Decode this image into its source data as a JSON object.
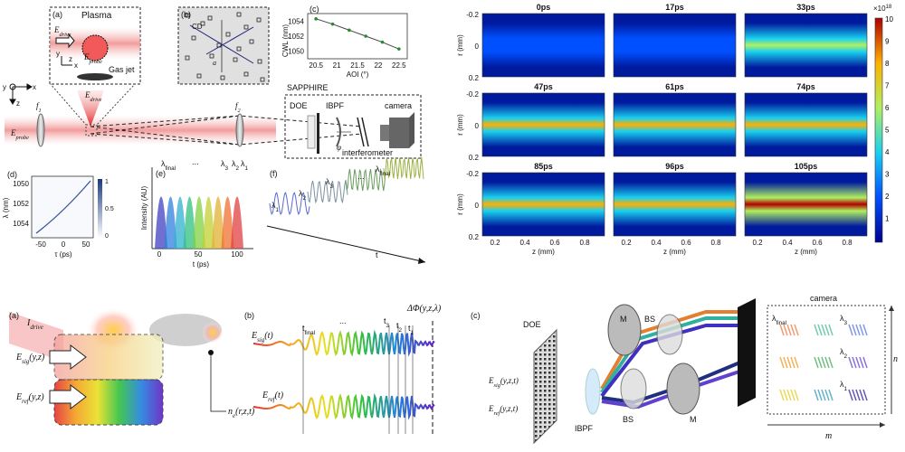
{
  "top_left": {
    "panel_a": {
      "label": "(a)",
      "plasma": "Plasma",
      "e_drive": "E",
      "e_drive_sub": "drive",
      "e_probe": "E",
      "e_probe_sub": "probe",
      "gas_jet": "Gas jet",
      "axis_y": "y",
      "axis_x": "x",
      "axis_z": "z"
    },
    "panel_b": {
      "label": "(b)",
      "cd": "CD",
      "a": "a"
    },
    "panel_c": {
      "label": "(c)",
      "xlabel": "AOI (°)",
      "ylabel": "CWL (nm)",
      "xticks": [
        "20.5",
        "21",
        "21.5",
        "22",
        "22.5"
      ],
      "yticks": [
        "1054",
        "1052",
        "1050"
      ],
      "points": [
        [
          20.5,
          1054.3
        ],
        [
          20.9,
          1053.6
        ],
        [
          21.3,
          1052.8
        ],
        [
          21.7,
          1052.0
        ],
        [
          22.1,
          1051.2
        ],
        [
          22.5,
          1050.3
        ]
      ]
    },
    "setup": {
      "e_probe": "E",
      "e_probe_sub": "probe",
      "e_drive": "E",
      "e_drive_sub": "drive",
      "f1": "f",
      "f1_sub": "1",
      "f2": "f",
      "f2_sub": "2",
      "sapphire": "SAPPHIRE",
      "doe": "DOE",
      "ibpf": "IBPF",
      "camera": "camera",
      "phi": "φ",
      "interferometer": "interferometer",
      "axis_y": "y",
      "axis_x": "x",
      "axis_z": "z"
    },
    "panel_d": {
      "label": "(d)",
      "ylabel": "λ (nm)",
      "xlabel": "τ (ps)",
      "yticks": [
        "1050",
        "1052",
        "1054"
      ],
      "xticks": [
        "-50",
        "0",
        "50"
      ],
      "cbar": [
        "1",
        "0.5",
        "0"
      ]
    },
    "panel_e": {
      "label": "(e)",
      "ylabel": "Intensity (AU)",
      "xlabel": "t (ps)",
      "xticks": [
        "0",
        "50",
        "100"
      ],
      "lambdas": [
        "λ",
        "λ",
        "λ",
        "λ"
      ],
      "lambda_subs": [
        "final",
        "3",
        "2",
        "1"
      ],
      "dots": "..."
    },
    "panel_f": {
      "label": "(f)",
      "lambdas": [
        "λ",
        "λ",
        "λ",
        "λ"
      ],
      "lambda_subs": [
        "1",
        "2",
        "3",
        "final"
      ],
      "dots": "...",
      "t": "t"
    }
  },
  "heatmaps": {
    "frames": [
      "0ps",
      "17ps",
      "33ps",
      "47ps",
      "61ps",
      "74ps",
      "85ps",
      "96ps",
      "105ps"
    ],
    "ylabel": "r (mm)",
    "yticks": [
      "-0.2",
      "0",
      "0.2"
    ],
    "xlabel": "z (mm)",
    "xticks": [
      "0.2",
      "0.4",
      "0.6",
      "0.8"
    ],
    "colorbar": {
      "exponent": "×10",
      "exponent_sup": "18",
      "ticks": [
        "10",
        "9",
        "8",
        "7",
        "6",
        "5",
        "4",
        "3",
        "2",
        "1"
      ]
    },
    "intensity": [
      0.08,
      0.15,
      0.55,
      0.72,
      0.74,
      0.8,
      0.74,
      0.78,
      0.82
    ],
    "colors": {
      "low": "#00108f",
      "mid": "#19c8e6",
      "high": "#e53a1a"
    }
  },
  "bottom": {
    "panel_a": {
      "label": "(a)",
      "i_drive": "I",
      "i_drive_sub": "drive",
      "e_sig": "E",
      "e_sig_sub": "sig",
      "e_sig_arg": "(y,z)",
      "e_ref": "E",
      "e_ref_sub": "ref",
      "e_ref_arg": "(y,z)",
      "ne": "n",
      "ne_sub": "e",
      "ne_arg": "(r,z,t)"
    },
    "panel_b": {
      "label": "(b)",
      "e_sig": "E",
      "e_sig_sub": "sig",
      "e_sig_arg": "(t)",
      "e_ref": "E",
      "e_ref_sub": "ref",
      "e_ref_arg": "(t)",
      "t_final": "t",
      "t_final_sub": "final",
      "t3": "t",
      "t3_sub": "3",
      "t2": "t",
      "t2_sub": "2",
      "t1": "t",
      "t1_sub": "1",
      "dots": "...",
      "dphi": "ΔΦ(y,z,λ)"
    },
    "panel_c": {
      "label": "(c)",
      "doe": "DOE",
      "m_top": "M",
      "bs_top": "BS",
      "bs_bottom": "BS",
      "m_bottom": "M",
      "ibpf": "IBPF",
      "e_sig": "E",
      "e_sig_sub": "sig",
      "e_sig_arg": "(y,z,t)",
      "e_ref": "E",
      "e_ref_sub": "ref",
      "e_ref_arg": "(y,z,t)",
      "camera": "camera",
      "lam_final": "λ",
      "lam_final_sub": "final",
      "lam3": "λ",
      "lam3_sub": "3",
      "lam2": "λ",
      "lam2_sub": "2",
      "lam1": "λ",
      "lam1_sub": "1",
      "m": "m",
      "n": "n"
    }
  }
}
